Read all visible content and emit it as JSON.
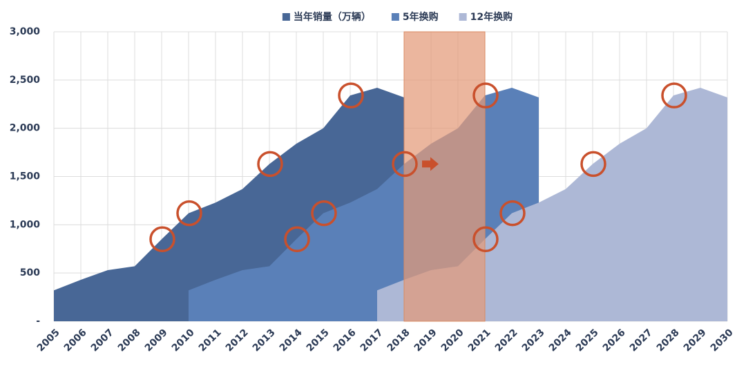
{
  "chart_data": {
    "type": "area",
    "categories": [
      "2005",
      "2006",
      "2007",
      "2008",
      "2009",
      "2010",
      "2011",
      "2012",
      "2013",
      "2014",
      "2015",
      "2016",
      "2017",
      "2018",
      "2019",
      "2020",
      "2021",
      "2022",
      "2023",
      "2024",
      "2025",
      "2026",
      "2027",
      "2028",
      "2029",
      "2030"
    ],
    "series": [
      {
        "name": "当年销量（万辆）",
        "color": "#486796",
        "values": [
          320,
          430,
          530,
          570,
          850,
          1120,
          1230,
          1370,
          1630,
          1840,
          2000,
          2340,
          2420,
          2320,
          null,
          null,
          null,
          null,
          null,
          null,
          null,
          null,
          null,
          null,
          null,
          null
        ]
      },
      {
        "name": "5年换购",
        "color": "#5a80b8",
        "values": [
          null,
          null,
          null,
          null,
          null,
          320,
          430,
          530,
          570,
          850,
          1120,
          1230,
          1370,
          1630,
          1840,
          2000,
          2340,
          2420,
          2320,
          null,
          null,
          null,
          null,
          null,
          null,
          null
        ]
      },
      {
        "name": "12年换购",
        "color": "#adb8d6",
        "values": [
          null,
          null,
          null,
          null,
          null,
          null,
          null,
          null,
          null,
          null,
          null,
          null,
          320,
          430,
          530,
          570,
          850,
          1120,
          1230,
          1370,
          1630,
          1840,
          2000,
          2340,
          2420,
          2320
        ]
      }
    ],
    "ylim": [
      0,
      3000
    ],
    "yticks": [
      {
        "value": 0,
        "label": "-"
      },
      {
        "value": 500,
        "label": "500"
      },
      {
        "value": 1000,
        "label": "1,000"
      },
      {
        "value": 1500,
        "label": "1,500"
      },
      {
        "value": 2000,
        "label": "2,000"
      },
      {
        "value": 2500,
        "label": "2,500"
      },
      {
        "value": 3000,
        "label": "3,000"
      }
    ],
    "grid": true,
    "legend": "top",
    "highlight_range": [
      "2018",
      "2021"
    ],
    "highlight_color": "#e39a78",
    "circled": [
      [
        "2009",
        "2010",
        "2013",
        "2016"
      ],
      [
        "2014",
        "2015",
        "2018",
        "2021"
      ],
      [
        "2021",
        "2022",
        "2025",
        "2028"
      ]
    ],
    "circle_color": "#c9502c"
  }
}
